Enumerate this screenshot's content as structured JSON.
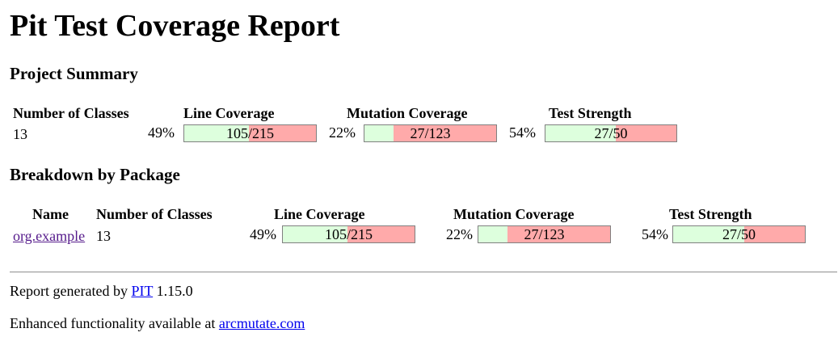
{
  "title": "Pit Test Coverage Report",
  "project_summary": {
    "heading": "Project Summary",
    "headers": {
      "classes": "Number of Classes",
      "line": "Line Coverage",
      "mutation": "Mutation Coverage",
      "strength": "Test Strength"
    },
    "classes": "13",
    "line": {
      "percent": "49%",
      "ratio": "105/215",
      "fraction": 0.488
    },
    "mutation": {
      "percent": "22%",
      "ratio": "27/123",
      "fraction": 0.22
    },
    "strength": {
      "percent": "54%",
      "ratio": "27/50",
      "fraction": 0.54
    }
  },
  "breakdown": {
    "heading": "Breakdown by Package",
    "headers": {
      "name": "Name",
      "classes": "Number of Classes",
      "line": "Line Coverage",
      "mutation": "Mutation Coverage",
      "strength": "Test Strength"
    },
    "rows": [
      {
        "name": "org.example",
        "classes": "13",
        "line": {
          "percent": "49%",
          "ratio": "105/215",
          "fraction": 0.488
        },
        "mutation": {
          "percent": "22%",
          "ratio": "27/123",
          "fraction": 0.22
        },
        "strength": {
          "percent": "54%",
          "ratio": "27/50",
          "fraction": 0.54
        }
      }
    ]
  },
  "footer": {
    "generated_prefix": "Report generated by ",
    "pit_link": "PIT",
    "version": " 1.15.0",
    "enhanced_prefix": "Enhanced functionality available at ",
    "arcmutate_link": "arcmutate.com"
  },
  "colors": {
    "covered": "#ddffdd",
    "uncovered": "#ffaaaa",
    "link": "#0000ee",
    "visited_link": "#551a8b"
  }
}
